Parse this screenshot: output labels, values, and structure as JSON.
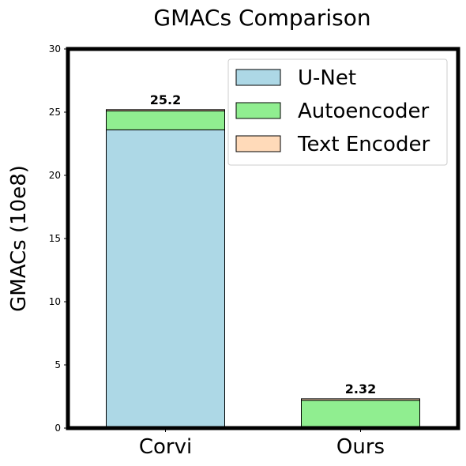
{
  "chart_data": {
    "type": "bar",
    "stacked": true,
    "title": "GMACs Comparison",
    "xlabel": "",
    "ylabel": "GMACs (10e8)",
    "categories": [
      "Corvi",
      "Ours"
    ],
    "ylim": [
      0,
      30
    ],
    "yticks": [
      0,
      5,
      10,
      15,
      20,
      25,
      30
    ],
    "grid": false,
    "legend_position": "top-right",
    "series": [
      {
        "name": "U-Net",
        "color": "#add8e6",
        "values": [
          23.6,
          0
        ]
      },
      {
        "name": "Autoencoder",
        "color": "#90ee90",
        "values": [
          1.5,
          2.2
        ]
      },
      {
        "name": "Text Encoder",
        "color": "#ffdab9",
        "values": [
          0.1,
          0.12
        ]
      }
    ],
    "totals": [
      "25.2",
      "2.32"
    ]
  }
}
